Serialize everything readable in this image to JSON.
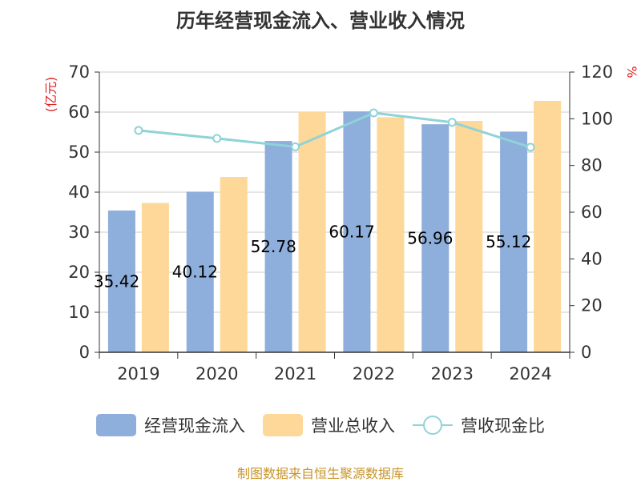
{
  "chart_data": {
    "type": "bar",
    "title": "历年经营现金流入、营业收入情况",
    "categories": [
      "2019",
      "2020",
      "2021",
      "2022",
      "2023",
      "2024"
    ],
    "series": [
      {
        "name": "经营现金流入",
        "type": "bar",
        "axis": "left",
        "color": "#8eaedb",
        "values": [
          35.421,
          40.122,
          52.785,
          60.172,
          56.961,
          55.126
        ],
        "data_labels": [
          "35.421",
          "40.122",
          "52.785",
          "60.172",
          "56.961",
          "55.126"
        ]
      },
      {
        "name": "营业总收入",
        "type": "bar",
        "axis": "left",
        "color": "#fdd898",
        "values": [
          37.3,
          43.8,
          60.0,
          58.7,
          57.8,
          62.8
        ]
      },
      {
        "name": "营收现金比",
        "type": "line",
        "axis": "right",
        "color": "#8fd3d8",
        "values": [
          95.0,
          91.6,
          88.0,
          102.5,
          98.5,
          87.8
        ]
      }
    ],
    "left_axis": {
      "label": "(亿元)",
      "ylim": [
        0,
        70
      ],
      "ticks": [
        0,
        10,
        20,
        30,
        40,
        50,
        60,
        70
      ]
    },
    "right_axis": {
      "label": "%",
      "ylim": [
        0,
        120
      ],
      "ticks": [
        0,
        20,
        40,
        60,
        80,
        100,
        120
      ]
    },
    "grid": true,
    "legend_position": "bottom",
    "source": "制图数据来自恒生聚源数据库",
    "colors": {
      "title": "#333333",
      "axis_label": "#e02020",
      "source": "#c8952a",
      "axis": "#333333",
      "grid": "#cccccc"
    }
  }
}
